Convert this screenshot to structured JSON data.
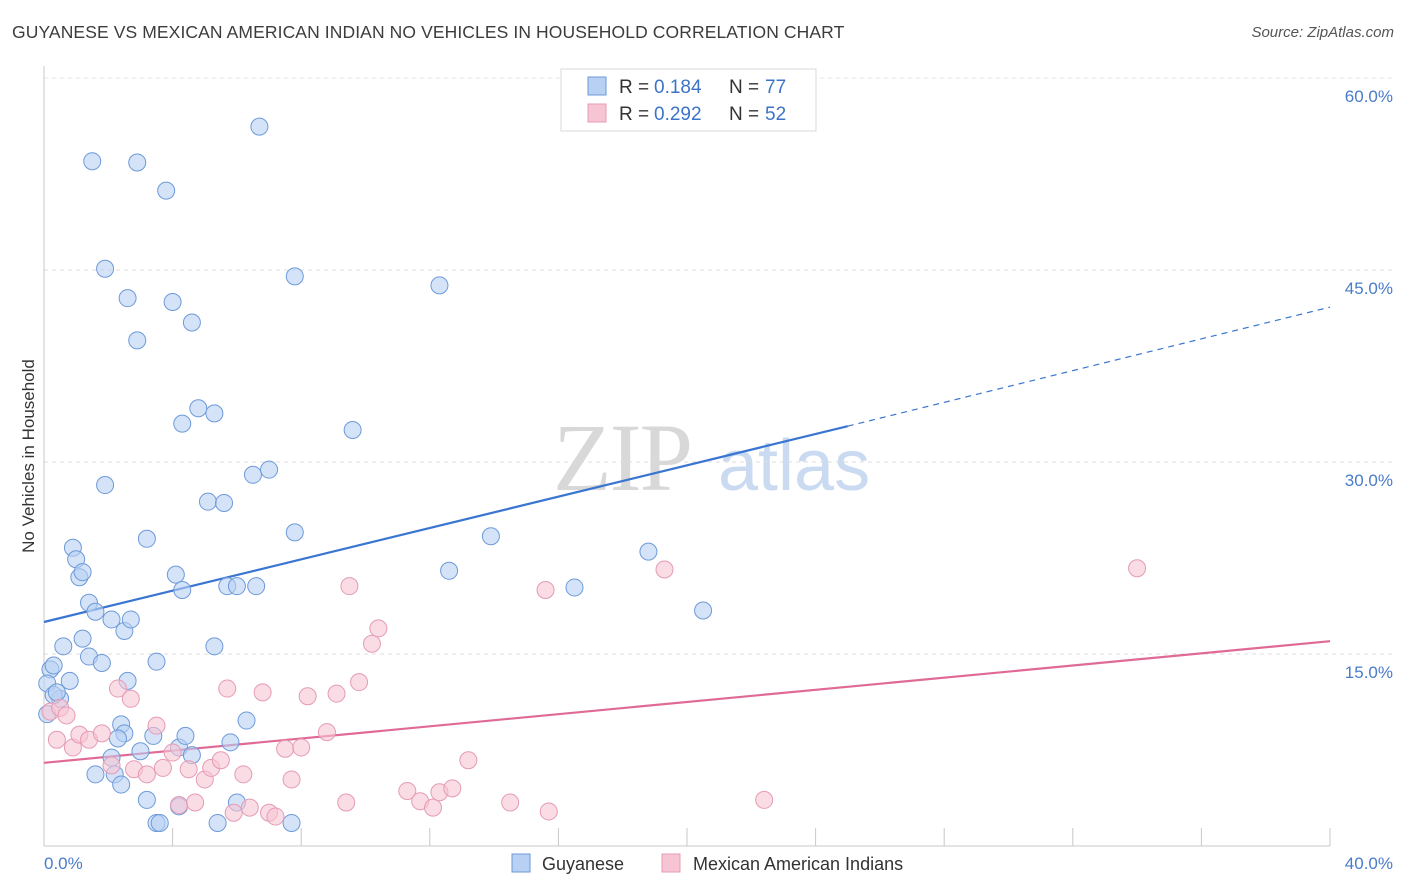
{
  "title": "GUYANESE VS MEXICAN AMERICAN INDIAN NO VEHICLES IN HOUSEHOLD CORRELATION CHART",
  "source": "Source: ZipAtlas.com",
  "watermark": {
    "zip": "ZIP",
    "atlas": "atlas"
  },
  "colors": {
    "blue": "#4a7fd4",
    "blue_fill": "#b8d0f3",
    "pink": "#e07aa0",
    "pink_fill": "#f7c4d4",
    "tick_text": "#4a7cc9"
  },
  "legend": {
    "rows": [
      {
        "r_label": "R =",
        "r_value": "0.184",
        "n_label": "N =",
        "n_value": "77"
      },
      {
        "r_label": "R =",
        "r_value": "0.292",
        "n_label": "N =",
        "n_value": "52"
      }
    ]
  },
  "bottom_legend": [
    "Guyanese",
    "Mexican American Indians"
  ],
  "chart_data": {
    "type": "scatter",
    "title": "GUYANESE VS MEXICAN AMERICAN INDIAN NO VEHICLES IN HOUSEHOLD CORRELATION CHART",
    "xlabel": "",
    "ylabel": "No Vehicles in Household",
    "xlim": [
      0,
      40
    ],
    "ylim": [
      0,
      60
    ],
    "x_tick_labels": [
      "0.0%",
      "40.0%"
    ],
    "y_ticks": [
      15,
      30,
      45,
      60
    ],
    "y_tick_labels": [
      "15.0%",
      "30.0%",
      "45.0%",
      "60.0%"
    ],
    "grid": true,
    "legend_position": "top-center",
    "series": [
      {
        "name": "Guyanese",
        "color": "#4a7fd4",
        "R": 0.184,
        "N": 77,
        "trend": {
          "x0": 0,
          "y0": 17.5,
          "x1": 25,
          "y1": 32.8,
          "dash_x1": 40,
          "dash_y1": 42.1
        },
        "points": [
          [
            0.2,
            13.8
          ],
          [
            0.3,
            14.1
          ],
          [
            0.1,
            12.7
          ],
          [
            0.5,
            11.5
          ],
          [
            0.3,
            11.8
          ],
          [
            0.6,
            15.6
          ],
          [
            0.4,
            12.0
          ],
          [
            0.8,
            12.9
          ],
          [
            0.1,
            10.3
          ],
          [
            0.9,
            23.3
          ],
          [
            1.0,
            22.4
          ],
          [
            1.1,
            21.0
          ],
          [
            1.2,
            21.4
          ],
          [
            1.4,
            19.0
          ],
          [
            1.6,
            18.3
          ],
          [
            1.2,
            16.2
          ],
          [
            1.4,
            14.8
          ],
          [
            1.8,
            14.3
          ],
          [
            2.1,
            17.7
          ],
          [
            2.5,
            16.8
          ],
          [
            2.7,
            17.7
          ],
          [
            2.6,
            12.9
          ],
          [
            2.4,
            9.5
          ],
          [
            2.5,
            8.8
          ],
          [
            2.3,
            8.4
          ],
          [
            2.1,
            6.9
          ],
          [
            2.2,
            5.6
          ],
          [
            1.6,
            5.6
          ],
          [
            2.4,
            4.8
          ],
          [
            3.2,
            24.0
          ],
          [
            3.5,
            14.4
          ],
          [
            3.4,
            8.6
          ],
          [
            3.0,
            7.4
          ],
          [
            3.2,
            3.6
          ],
          [
            3.5,
            1.8
          ],
          [
            3.6,
            1.8
          ],
          [
            1.5,
            53.5
          ],
          [
            2.9,
            53.4
          ],
          [
            3.8,
            51.2
          ],
          [
            1.9,
            45.1
          ],
          [
            2.6,
            42.8
          ],
          [
            4.0,
            42.5
          ],
          [
            2.9,
            39.5
          ],
          [
            4.6,
            40.9
          ],
          [
            4.8,
            34.2
          ],
          [
            4.3,
            33.0
          ],
          [
            5.3,
            33.8
          ],
          [
            1.9,
            28.2
          ],
          [
            5.1,
            26.9
          ],
          [
            5.6,
            26.8
          ],
          [
            4.1,
            21.2
          ],
          [
            4.3,
            20.0
          ],
          [
            5.7,
            20.3
          ],
          [
            6.0,
            20.3
          ],
          [
            6.6,
            20.3
          ],
          [
            6.5,
            29.0
          ],
          [
            7.0,
            29.4
          ],
          [
            7.8,
            24.5
          ],
          [
            5.3,
            15.6
          ],
          [
            6.3,
            9.8
          ],
          [
            5.8,
            8.1
          ],
          [
            4.2,
            7.7
          ],
          [
            4.4,
            8.6
          ],
          [
            4.6,
            7.1
          ],
          [
            4.2,
            3.1
          ],
          [
            5.4,
            1.8
          ],
          [
            6.7,
            56.2
          ],
          [
            7.8,
            44.5
          ],
          [
            12.3,
            43.8
          ],
          [
            9.6,
            32.5
          ],
          [
            12.6,
            21.5
          ],
          [
            13.9,
            24.2
          ],
          [
            16.5,
            20.2
          ],
          [
            18.8,
            23.0
          ],
          [
            20.5,
            18.4
          ],
          [
            7.7,
            1.8
          ],
          [
            6.0,
            3.4
          ]
        ]
      },
      {
        "name": "Mexican American Indians",
        "color": "#e07aa0",
        "R": 0.292,
        "N": 52,
        "trend": {
          "x0": 0,
          "y0": 6.5,
          "x1": 40,
          "y1": 16.0
        },
        "points": [
          [
            0.2,
            10.5
          ],
          [
            0.4,
            8.3
          ],
          [
            0.5,
            10.8
          ],
          [
            0.7,
            10.2
          ],
          [
            0.9,
            7.7
          ],
          [
            1.1,
            8.7
          ],
          [
            1.4,
            8.3
          ],
          [
            1.8,
            8.8
          ],
          [
            2.1,
            6.3
          ],
          [
            2.3,
            12.3
          ],
          [
            2.7,
            11.5
          ],
          [
            2.8,
            6.0
          ],
          [
            3.2,
            5.6
          ],
          [
            3.5,
            9.4
          ],
          [
            3.7,
            6.1
          ],
          [
            4.0,
            7.3
          ],
          [
            4.2,
            3.2
          ],
          [
            4.5,
            6.0
          ],
          [
            4.7,
            3.4
          ],
          [
            5.0,
            5.2
          ],
          [
            5.2,
            6.1
          ],
          [
            5.5,
            6.7
          ],
          [
            5.7,
            12.3
          ],
          [
            5.9,
            2.6
          ],
          [
            6.2,
            5.6
          ],
          [
            6.4,
            3.0
          ],
          [
            6.8,
            12.0
          ],
          [
            7.0,
            2.6
          ],
          [
            7.2,
            2.3
          ],
          [
            7.5,
            7.6
          ],
          [
            7.7,
            5.2
          ],
          [
            8.0,
            7.7
          ],
          [
            8.2,
            11.7
          ],
          [
            8.8,
            8.9
          ],
          [
            9.1,
            11.9
          ],
          [
            9.4,
            3.4
          ],
          [
            9.8,
            12.8
          ],
          [
            10.2,
            15.8
          ],
          [
            10.4,
            17.0
          ],
          [
            9.5,
            20.3
          ],
          [
            11.3,
            4.3
          ],
          [
            11.7,
            3.5
          ],
          [
            12.1,
            3.0
          ],
          [
            12.3,
            4.2
          ],
          [
            12.7,
            4.5
          ],
          [
            13.2,
            6.7
          ],
          [
            14.5,
            3.4
          ],
          [
            15.7,
            2.7
          ],
          [
            15.6,
            20.0
          ],
          [
            19.3,
            21.6
          ],
          [
            22.4,
            3.6
          ],
          [
            34.0,
            21.7
          ]
        ]
      }
    ]
  }
}
